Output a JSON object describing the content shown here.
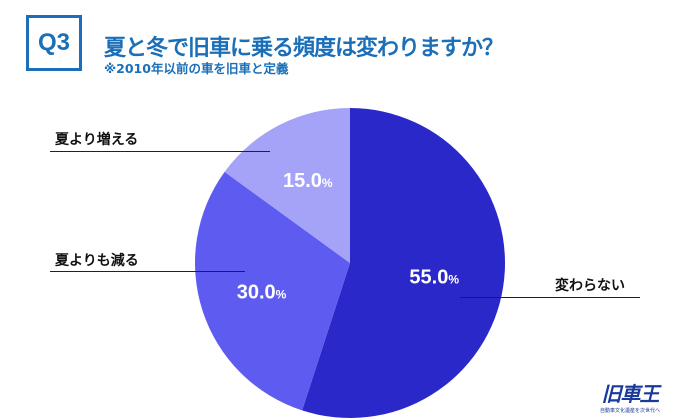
{
  "header": {
    "badge": "Q3",
    "title": "夏と冬で旧車に乗る頻度は変わりますか？",
    "subtitle": "※2010年以前の車を旧車と定義"
  },
  "chart_data": {
    "type": "pie",
    "categories": [
      "変わらない",
      "夏よりも減る",
      "夏より増える"
    ],
    "values": [
      55.0,
      30.0,
      15.0
    ],
    "data_labels": [
      "55.0",
      "30.0",
      "15.0"
    ],
    "unit": "%",
    "colors": [
      "#2b28c9",
      "#5e5cf0",
      "#a4a3f7"
    ],
    "start": "top",
    "direction": "clockwise"
  },
  "logo": {
    "mark": "旧車王",
    "tagline": "自動車文化遺産を次世代へ"
  }
}
